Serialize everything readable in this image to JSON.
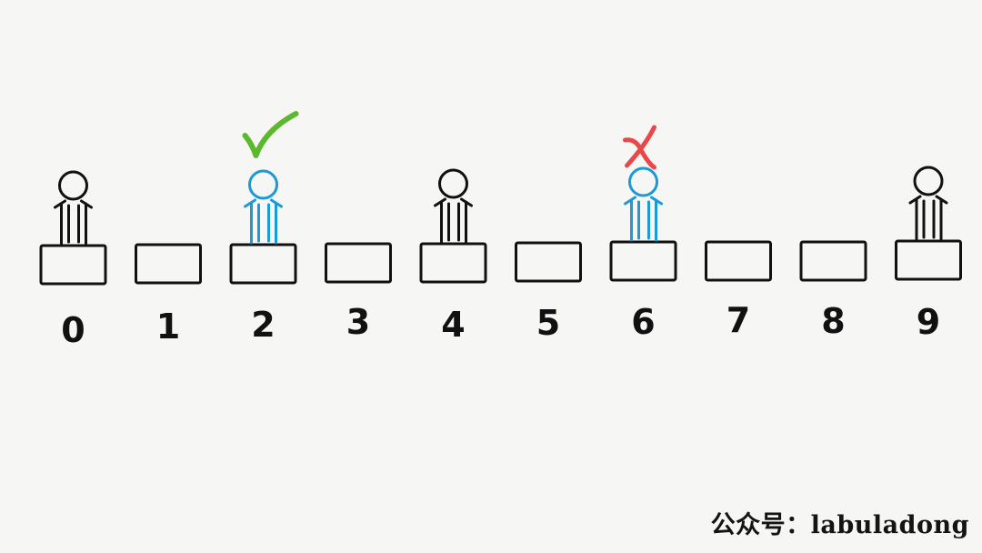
{
  "diagram": {
    "seats": [
      "0",
      "1",
      "2",
      "3",
      "4",
      "5",
      "6",
      "7",
      "8",
      "9"
    ],
    "people": [
      {
        "seat": 0,
        "color": "#111111",
        "mark": null
      },
      {
        "seat": 2,
        "color": "#1a9ad6",
        "mark": "check"
      },
      {
        "seat": 4,
        "color": "#111111",
        "mark": null
      },
      {
        "seat": 6,
        "color": "#1a9ad6",
        "mark": "cross"
      },
      {
        "seat": 9,
        "color": "#111111",
        "mark": null
      }
    ],
    "colors": {
      "check": "#5cb82c",
      "cross": "#e8484a",
      "seat_stroke": "#111111"
    }
  },
  "watermark": {
    "prefix": "公众号：",
    "name": "labuladong"
  }
}
